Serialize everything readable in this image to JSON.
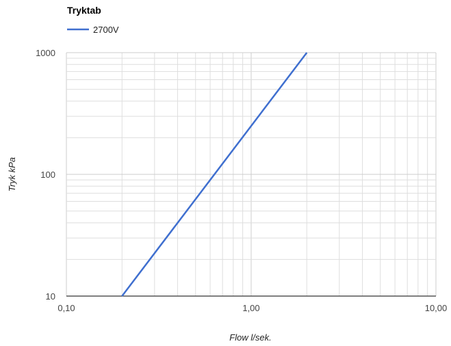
{
  "chart_data": {
    "type": "line",
    "title": "Tryktab",
    "xlabel": "Flow l/sek.",
    "ylabel": "Tryk kPa",
    "x_scale": "log",
    "y_scale": "log",
    "xlim": [
      0.1,
      10
    ],
    "ylim": [
      10,
      1000
    ],
    "x_ticks": [
      0.1,
      1,
      10
    ],
    "x_tick_labels": [
      "0,10",
      "1,00",
      "10,00"
    ],
    "y_ticks": [
      10,
      100,
      1000
    ],
    "y_tick_labels": [
      "10",
      "100",
      "1000"
    ],
    "grid": true,
    "legend_position": "top-left",
    "series": [
      {
        "name": "2700V",
        "color": "#3f6fcf",
        "points": [
          [
            0.2,
            10
          ],
          [
            2.0,
            1000
          ]
        ]
      }
    ]
  }
}
